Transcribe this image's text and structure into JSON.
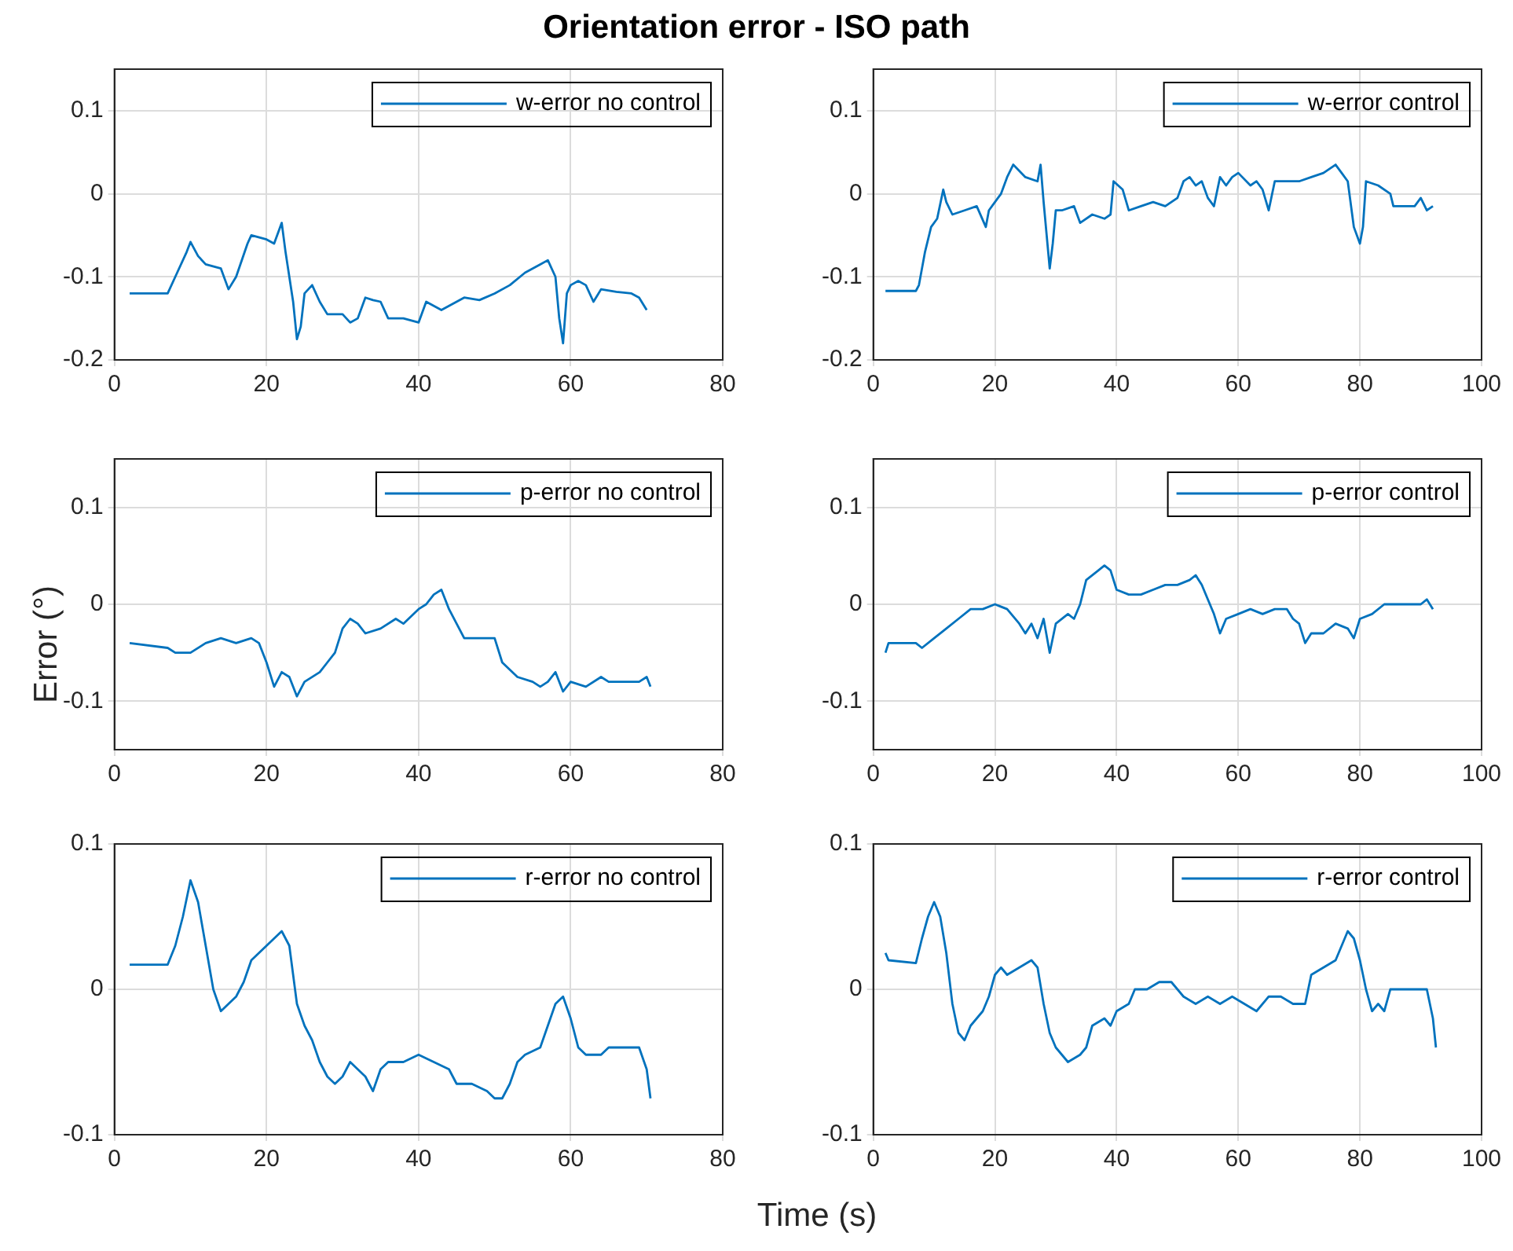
{
  "chart_data": [
    {
      "type": "line",
      "title": "Orientation error - ISO path",
      "xlim": [
        0,
        80
      ],
      "xticks": [
        0,
        20,
        40,
        60,
        80
      ],
      "ylim": [
        -0.2,
        0.15
      ],
      "yticks": [
        -0.2,
        -0.1,
        0,
        0.1
      ],
      "grid": true,
      "legend": "top right",
      "series": [
        {
          "name": "w-error no control",
          "color": "#0072bd",
          "x": [
            2,
            7,
            8,
            9.5,
            10,
            11,
            12,
            14,
            15,
            16,
            17.5,
            18,
            20,
            21,
            22,
            22.5,
            23.5,
            24,
            24.5,
            25,
            26,
            27,
            28,
            30,
            31,
            32,
            33,
            34,
            35,
            36,
            38,
            40,
            41,
            43,
            45,
            46,
            48,
            50,
            52,
            54,
            56,
            57,
            58,
            58.5,
            59,
            59.5,
            60,
            61,
            62,
            63,
            64,
            66,
            68,
            69,
            70
          ],
          "values": [
            -0.12,
            -0.12,
            -0.1,
            -0.07,
            -0.058,
            -0.075,
            -0.085,
            -0.09,
            -0.115,
            -0.1,
            -0.06,
            -0.05,
            -0.055,
            -0.06,
            -0.035,
            -0.07,
            -0.13,
            -0.175,
            -0.16,
            -0.12,
            -0.11,
            -0.13,
            -0.145,
            -0.145,
            -0.155,
            -0.15,
            -0.125,
            -0.128,
            -0.13,
            -0.15,
            -0.15,
            -0.155,
            -0.13,
            -0.14,
            -0.13,
            -0.125,
            -0.128,
            -0.12,
            -0.11,
            -0.095,
            -0.085,
            -0.08,
            -0.1,
            -0.15,
            -0.18,
            -0.12,
            -0.11,
            -0.105,
            -0.11,
            -0.13,
            -0.115,
            -0.118,
            -0.12,
            -0.125,
            -0.14
          ]
        }
      ]
    },
    {
      "type": "line",
      "xlim": [
        0,
        100
      ],
      "xticks": [
        0,
        20,
        40,
        60,
        80,
        100
      ],
      "ylim": [
        -0.2,
        0.15
      ],
      "yticks": [
        -0.2,
        -0.1,
        0,
        0.1
      ],
      "grid": true,
      "legend": "top right",
      "series": [
        {
          "name": "w-error control",
          "color": "#0072bd",
          "x": [
            2,
            7,
            7.5,
            8.5,
            9.5,
            10.5,
            11.5,
            12,
            13,
            15,
            17,
            18.5,
            19,
            20,
            21,
            22,
            23,
            25,
            27,
            27.5,
            28,
            28.5,
            29,
            29.5,
            30,
            31,
            33,
            34,
            36,
            38,
            39,
            39.5,
            41,
            42,
            44,
            46,
            48,
            50,
            51,
            52,
            53,
            54,
            55,
            56,
            57,
            58,
            59,
            60,
            62,
            63,
            64,
            65,
            66,
            68,
            70,
            72,
            74,
            76,
            77,
            78,
            79,
            80,
            80.5,
            81,
            83,
            85,
            85.5,
            88,
            89,
            90,
            91,
            92
          ],
          "values": [
            -0.117,
            -0.117,
            -0.11,
            -0.07,
            -0.04,
            -0.03,
            0.005,
            -0.01,
            -0.025,
            -0.02,
            -0.015,
            -0.04,
            -0.02,
            -0.01,
            0,
            0.02,
            0.035,
            0.02,
            0.015,
            0.035,
            -0.01,
            -0.05,
            -0.09,
            -0.06,
            -0.02,
            -0.02,
            -0.015,
            -0.035,
            -0.025,
            -0.03,
            -0.025,
            0.015,
            0.005,
            -0.02,
            -0.015,
            -0.01,
            -0.015,
            -0.005,
            0.015,
            0.02,
            0.01,
            0.015,
            -0.005,
            -0.015,
            0.02,
            0.01,
            0.02,
            0.025,
            0.01,
            0.015,
            0.005,
            -0.02,
            0.015,
            0.015,
            0.015,
            0.02,
            0.025,
            0.035,
            0.025,
            0.015,
            -0.04,
            -0.06,
            -0.04,
            0.015,
            0.01,
            0,
            -0.015,
            -0.015,
            -0.015,
            -0.005,
            -0.02,
            -0.015
          ]
        }
      ]
    },
    {
      "type": "line",
      "ylabel": "Error (°)",
      "xlim": [
        0,
        80
      ],
      "xticks": [
        0,
        20,
        40,
        60,
        80
      ],
      "ylim": [
        -0.15,
        0.15
      ],
      "yticks": [
        -0.1,
        0,
        0.1
      ],
      "grid": true,
      "legend": "top right",
      "series": [
        {
          "name": "p-error no control",
          "color": "#0072bd",
          "x": [
            2,
            7,
            8,
            10,
            12,
            14,
            16,
            18,
            19,
            20,
            21,
            22,
            23,
            24,
            25,
            27,
            28,
            29,
            30,
            31,
            32,
            33,
            35,
            37,
            38,
            40,
            41,
            42,
            43,
            44,
            45,
            46,
            48,
            50,
            51,
            53,
            55,
            56,
            57,
            58,
            59,
            60,
            62,
            64,
            65,
            68,
            69,
            70,
            70.5
          ],
          "values": [
            -0.04,
            -0.045,
            -0.05,
            -0.05,
            -0.04,
            -0.035,
            -0.04,
            -0.035,
            -0.04,
            -0.06,
            -0.085,
            -0.07,
            -0.075,
            -0.095,
            -0.08,
            -0.07,
            -0.06,
            -0.05,
            -0.025,
            -0.015,
            -0.02,
            -0.03,
            -0.025,
            -0.015,
            -0.02,
            -0.005,
            0,
            0.01,
            0.015,
            -0.005,
            -0.02,
            -0.035,
            -0.035,
            -0.035,
            -0.06,
            -0.075,
            -0.08,
            -0.085,
            -0.08,
            -0.07,
            -0.09,
            -0.08,
            -0.085,
            -0.075,
            -0.08,
            -0.08,
            -0.08,
            -0.075,
            -0.085
          ]
        }
      ]
    },
    {
      "type": "line",
      "xlim": [
        0,
        100
      ],
      "xticks": [
        0,
        20,
        40,
        60,
        80,
        100
      ],
      "ylim": [
        -0.15,
        0.15
      ],
      "yticks": [
        -0.1,
        0,
        0.1
      ],
      "grid": true,
      "legend": "top right",
      "series": [
        {
          "name": "p-error control",
          "color": "#0072bd",
          "x": [
            2,
            2.5,
            7,
            8,
            10,
            12,
            14,
            16,
            18,
            20,
            22,
            24,
            25,
            26,
            27,
            28,
            29,
            30,
            32,
            33,
            34,
            35,
            37,
            38,
            39,
            40,
            42,
            44,
            46,
            48,
            50,
            52,
            53,
            54,
            56,
            57,
            58,
            60,
            62,
            64,
            66,
            68,
            69,
            70,
            71,
            72,
            74,
            76,
            78,
            79,
            80,
            82,
            84,
            85,
            90,
            91,
            92
          ],
          "values": [
            -0.05,
            -0.04,
            -0.04,
            -0.045,
            -0.035,
            -0.025,
            -0.015,
            -0.005,
            -0.005,
            0,
            -0.005,
            -0.02,
            -0.03,
            -0.02,
            -0.035,
            -0.015,
            -0.05,
            -0.02,
            -0.01,
            -0.015,
            0,
            0.025,
            0.035,
            0.04,
            0.035,
            0.015,
            0.01,
            0.01,
            0.015,
            0.02,
            0.02,
            0.025,
            0.03,
            0.02,
            -0.01,
            -0.03,
            -0.015,
            -0.01,
            -0.005,
            -0.01,
            -0.005,
            -0.005,
            -0.015,
            -0.02,
            -0.04,
            -0.03,
            -0.03,
            -0.02,
            -0.025,
            -0.035,
            -0.015,
            -0.01,
            0,
            0,
            0,
            0.005,
            -0.005
          ]
        }
      ]
    },
    {
      "type": "line",
      "xlabel": "Time (s)",
      "xlim": [
        0,
        80
      ],
      "xticks": [
        0,
        20,
        40,
        60,
        80
      ],
      "ylim": [
        -0.1,
        0.1
      ],
      "yticks": [
        -0.1,
        0,
        0.1
      ],
      "grid": true,
      "legend": "top right",
      "series": [
        {
          "name": "r-error no control",
          "color": "#0072bd",
          "x": [
            2,
            7,
            8,
            9,
            10,
            11,
            12,
            13,
            14,
            15,
            16,
            17,
            18,
            19,
            20,
            21,
            22,
            23,
            24,
            25,
            26,
            27,
            28,
            29,
            30,
            31,
            32,
            33,
            34,
            35,
            36,
            38,
            40,
            42,
            44,
            45,
            47,
            49,
            50,
            51,
            52,
            53,
            54,
            56,
            57,
            58,
            59,
            60,
            61,
            62,
            64,
            65,
            67,
            69,
            70,
            70.5
          ],
          "values": [
            0.017,
            0.017,
            0.03,
            0.05,
            0.075,
            0.06,
            0.03,
            0,
            -0.015,
            -0.01,
            -0.005,
            0.005,
            0.02,
            0.025,
            0.03,
            0.035,
            0.04,
            0.03,
            -0.01,
            -0.025,
            -0.035,
            -0.05,
            -0.06,
            -0.065,
            -0.06,
            -0.05,
            -0.055,
            -0.06,
            -0.07,
            -0.055,
            -0.05,
            -0.05,
            -0.045,
            -0.05,
            -0.055,
            -0.065,
            -0.065,
            -0.07,
            -0.075,
            -0.075,
            -0.065,
            -0.05,
            -0.045,
            -0.04,
            -0.025,
            -0.01,
            -0.005,
            -0.02,
            -0.04,
            -0.045,
            -0.045,
            -0.04,
            -0.04,
            -0.04,
            -0.055,
            -0.075
          ]
        }
      ]
    },
    {
      "type": "line",
      "xlim": [
        0,
        100
      ],
      "xticks": [
        0,
        20,
        40,
        60,
        80,
        100
      ],
      "ylim": [
        -0.1,
        0.1
      ],
      "yticks": [
        -0.1,
        0,
        0.1
      ],
      "grid": true,
      "legend": "top right",
      "series": [
        {
          "name": "r-error control",
          "color": "#0072bd",
          "x": [
            2,
            2.5,
            7,
            8,
            9,
            10,
            11,
            12,
            13,
            14,
            15,
            16,
            18,
            19,
            20,
            21,
            22,
            24,
            26,
            27,
            28,
            29,
            30,
            31,
            32,
            34,
            35,
            36,
            38,
            39,
            40,
            42,
            43,
            45,
            47,
            49,
            51,
            53,
            55,
            57,
            59,
            61,
            63,
            65,
            67,
            69,
            71,
            72,
            74,
            76,
            77,
            78,
            79,
            80,
            81,
            82,
            83,
            84,
            85,
            90,
            91,
            92,
            92.5
          ],
          "values": [
            0.025,
            0.02,
            0.018,
            0.035,
            0.05,
            0.06,
            0.05,
            0.025,
            -0.01,
            -0.03,
            -0.035,
            -0.025,
            -0.015,
            -0.005,
            0.01,
            0.015,
            0.01,
            0.015,
            0.02,
            0.015,
            -0.01,
            -0.03,
            -0.04,
            -0.045,
            -0.05,
            -0.045,
            -0.04,
            -0.025,
            -0.02,
            -0.025,
            -0.015,
            -0.01,
            0,
            0,
            0.005,
            0.005,
            -0.005,
            -0.01,
            -0.005,
            -0.01,
            -0.005,
            -0.01,
            -0.015,
            -0.005,
            -0.005,
            -0.01,
            -0.01,
            0.01,
            0.015,
            0.02,
            0.03,
            0.04,
            0.035,
            0.02,
            0,
            -0.015,
            -0.01,
            -0.015,
            0,
            0,
            0,
            -0.02,
            -0.04
          ]
        }
      ]
    }
  ]
}
